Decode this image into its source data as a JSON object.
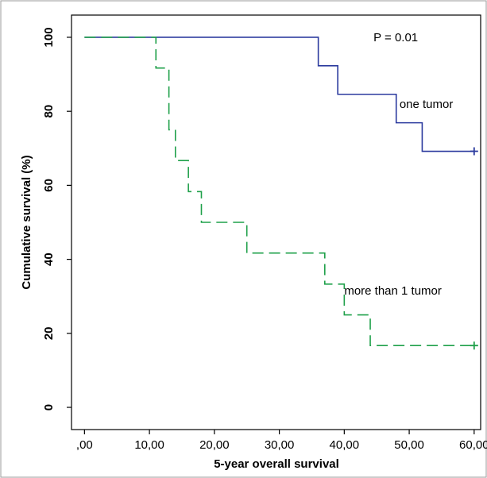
{
  "chart_data": {
    "type": "line",
    "title": "",
    "xlabel": "5-year overall survival",
    "ylabel": "Cumulative survival (%)",
    "xlim": [
      -2,
      61
    ],
    "ylim": [
      -6,
      106
    ],
    "x_ticks": [
      0,
      10,
      20,
      30,
      40,
      50,
      60
    ],
    "x_tick_labels": [
      ",00",
      "10,00",
      "20,00",
      "30,00",
      "40,00",
      "50,00",
      "60,00"
    ],
    "y_ticks": [
      0,
      20,
      40,
      60,
      80,
      100
    ],
    "y_tick_labels": [
      "0",
      "20",
      "40",
      "60",
      "80",
      "100"
    ],
    "grid": false,
    "legend": "none",
    "annotations": [
      {
        "text": "P = 0.01",
        "x": 44.5,
        "y": 100
      },
      {
        "text": "one tumor",
        "x": 48.5,
        "y": 82
      },
      {
        "text": "more than 1 tumor",
        "x": 40,
        "y": 31.5
      }
    ],
    "series": [
      {
        "name": "one tumor",
        "color": "#2b3a9e",
        "dash": "solid",
        "steps": [
          [
            0,
            100
          ],
          [
            36,
            92.3
          ],
          [
            39,
            84.6
          ],
          [
            48,
            76.9
          ],
          [
            52,
            69.2
          ],
          [
            60,
            69.2
          ]
        ],
        "censored": [
          [
            60,
            69.2
          ]
        ]
      },
      {
        "name": "more than 1 tumor",
        "color": "#1fa04a",
        "dash": "dashed",
        "steps": [
          [
            0,
            100
          ],
          [
            11,
            91.7
          ],
          [
            13,
            75
          ],
          [
            14,
            66.7
          ],
          [
            16,
            58.3
          ],
          [
            18,
            50
          ],
          [
            25,
            41.7
          ],
          [
            37,
            33.3
          ],
          [
            40,
            25
          ],
          [
            44,
            16.7
          ],
          [
            60,
            16.7
          ]
        ],
        "censored": [
          [
            60,
            16.7
          ]
        ]
      }
    ]
  }
}
